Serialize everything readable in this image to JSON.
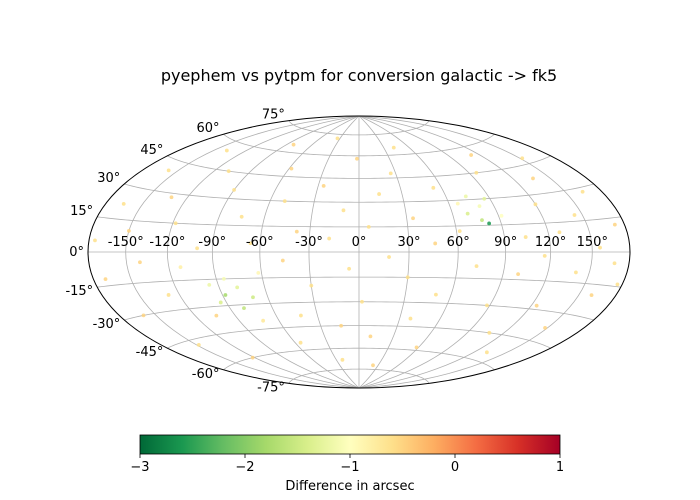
{
  "chart_data": {
    "type": "scatter",
    "projection": "aitoff",
    "title": "pyephem vs pytpm for conversion galactic -> fk5",
    "grid": true,
    "x_ticks_deg": [
      -150,
      -120,
      -90,
      -60,
      -30,
      0,
      30,
      60,
      90,
      120,
      150
    ],
    "x_tick_labels": [
      "-150°",
      "-120°",
      "-90°",
      "-60°",
      "-30°",
      "0°",
      "30°",
      "60°",
      "90°",
      "120°",
      "150°"
    ],
    "y_ticks_deg": [
      75,
      60,
      45,
      30,
      15,
      0,
      -15,
      -30,
      -45,
      -60,
      -75
    ],
    "y_tick_labels": [
      "75°",
      "60°",
      "45°",
      "30°",
      "15°",
      "0°",
      "-15°",
      "-30°",
      "-45°",
      "-60°",
      "-75°"
    ],
    "colorbar": {
      "label": "Difference in arcsec",
      "range": [
        -3,
        1
      ],
      "ticks": [
        -3,
        -2,
        -1,
        0,
        1
      ],
      "tick_labels": [
        "−3",
        "−2",
        "−1",
        "0",
        "1"
      ],
      "colormap": "RdYlGn_r",
      "colormap_stops": [
        "#006837",
        "#1a9850",
        "#66bd63",
        "#a6d96a",
        "#d9ef8b",
        "#ffffbf",
        "#fee08b",
        "#fdae61",
        "#f46d43",
        "#d73027",
        "#a50026"
      ]
    },
    "points": [
      {
        "lon": -175,
        "lat": 5,
        "diff": -0.6
      },
      {
        "lon": -170,
        "lat": -12,
        "diff": -0.5
      },
      {
        "lon": -165,
        "lat": 22,
        "diff": -0.6
      },
      {
        "lon": -160,
        "lat": -30,
        "diff": -0.5
      },
      {
        "lon": -158,
        "lat": 40,
        "diff": -0.6
      },
      {
        "lon": -150,
        "lat": 10,
        "diff": -0.5
      },
      {
        "lon": -148,
        "lat": -48,
        "diff": -0.6
      },
      {
        "lon": -140,
        "lat": -5,
        "diff": -0.5
      },
      {
        "lon": -138,
        "lat": 55,
        "diff": -0.6
      },
      {
        "lon": -132,
        "lat": 28,
        "diff": -0.5
      },
      {
        "lon": -128,
        "lat": -22,
        "diff": -0.6
      },
      {
        "lon": -122,
        "lat": -60,
        "diff": -0.5
      },
      {
        "lon": -118,
        "lat": 15,
        "diff": -0.6
      },
      {
        "lon": -112,
        "lat": -8,
        "diff": -0.8
      },
      {
        "lon": -108,
        "lat": 45,
        "diff": -0.6
      },
      {
        "lon": -104,
        "lat": -35,
        "diff": -0.5
      },
      {
        "lon": -100,
        "lat": 2,
        "diff": -0.6
      },
      {
        "lon": -96,
        "lat": -18,
        "diff": -1.2
      },
      {
        "lon": -94,
        "lat": -28,
        "diff": -1.4
      },
      {
        "lon": -90,
        "lat": 35,
        "diff": -0.6
      },
      {
        "lon": -88,
        "lat": -24,
        "diff": -1.8
      },
      {
        "lon": -85,
        "lat": -15,
        "diff": -1.1
      },
      {
        "lon": -82,
        "lat": 65,
        "diff": -0.5
      },
      {
        "lon": -80,
        "lat": -32,
        "diff": -1.6
      },
      {
        "lon": -78,
        "lat": -20,
        "diff": -1.3
      },
      {
        "lon": -75,
        "lat": 20,
        "diff": -0.6
      },
      {
        "lon": -72,
        "lat": -40,
        "diff": -0.7
      },
      {
        "lon": -70,
        "lat": -26,
        "diff": -1.5
      },
      {
        "lon": -66,
        "lat": 5,
        "diff": -0.6
      },
      {
        "lon": -62,
        "lat": -12,
        "diff": -0.9
      },
      {
        "lon": -58,
        "lat": 50,
        "diff": -0.5
      },
      {
        "lon": -55,
        "lat": -55,
        "diff": -0.6
      },
      {
        "lon": -50,
        "lat": 30,
        "diff": -0.6
      },
      {
        "lon": -46,
        "lat": -5,
        "diff": -0.5
      },
      {
        "lon": -42,
        "lat": -38,
        "diff": -0.6
      },
      {
        "lon": -38,
        "lat": 12,
        "diff": -0.5
      },
      {
        "lon": -34,
        "lat": 72,
        "diff": -0.6
      },
      {
        "lon": -30,
        "lat": -20,
        "diff": -0.6
      },
      {
        "lon": -26,
        "lat": 40,
        "diff": -0.5
      },
      {
        "lon": -22,
        "lat": -68,
        "diff": -0.6
      },
      {
        "lon": -18,
        "lat": 8,
        "diff": -0.6
      },
      {
        "lon": -14,
        "lat": -45,
        "diff": -0.5
      },
      {
        "lon": -10,
        "lat": 25,
        "diff": -0.6
      },
      {
        "lon": -6,
        "lat": -10,
        "diff": -0.6
      },
      {
        "lon": -2,
        "lat": 58,
        "diff": -0.5
      },
      {
        "lon": 2,
        "lat": -30,
        "diff": -0.6
      },
      {
        "lon": 6,
        "lat": 15,
        "diff": -0.6
      },
      {
        "lon": 10,
        "lat": -52,
        "diff": -0.5
      },
      {
        "lon": 14,
        "lat": 35,
        "diff": -0.6
      },
      {
        "lon": 18,
        "lat": -3,
        "diff": -0.6
      },
      {
        "lon": 22,
        "lat": -72,
        "diff": -0.5
      },
      {
        "lon": 26,
        "lat": 48,
        "diff": -0.6
      },
      {
        "lon": 30,
        "lat": -15,
        "diff": -0.6
      },
      {
        "lon": 34,
        "lat": 20,
        "diff": -0.5
      },
      {
        "lon": 38,
        "lat": -40,
        "diff": -0.6
      },
      {
        "lon": 42,
        "lat": 65,
        "diff": -0.6
      },
      {
        "lon": 46,
        "lat": 5,
        "diff": -0.5
      },
      {
        "lon": 50,
        "lat": -25,
        "diff": -0.6
      },
      {
        "lon": 54,
        "lat": 38,
        "diff": -0.6
      },
      {
        "lon": 58,
        "lat": -58,
        "diff": -0.5
      },
      {
        "lon": 62,
        "lat": 12,
        "diff": -0.6
      },
      {
        "lon": 66,
        "lat": 28,
        "diff": -0.9
      },
      {
        "lon": 70,
        "lat": 22,
        "diff": -1.4
      },
      {
        "lon": 72,
        "lat": -8,
        "diff": -0.6
      },
      {
        "lon": 74,
        "lat": 32,
        "diff": -1.2
      },
      {
        "lon": 78,
        "lat": 18,
        "diff": -1.6
      },
      {
        "lon": 80,
        "lat": 26,
        "diff": -1.1
      },
      {
        "lon": 82,
        "lat": 16,
        "diff": -2.6
      },
      {
        "lon": 86,
        "lat": 30,
        "diff": -1.3
      },
      {
        "lon": 88,
        "lat": -30,
        "diff": -0.6
      },
      {
        "lon": 92,
        "lat": 20,
        "diff": -1.0
      },
      {
        "lon": 96,
        "lat": 45,
        "diff": -0.6
      },
      {
        "lon": 100,
        "lat": -12,
        "diff": -0.5
      },
      {
        "lon": 104,
        "lat": 8,
        "diff": -0.6
      },
      {
        "lon": 108,
        "lat": -45,
        "diff": -0.6
      },
      {
        "lon": 112,
        "lat": 55,
        "diff": -0.5
      },
      {
        "lon": 116,
        "lat": -2,
        "diff": -0.6
      },
      {
        "lon": 120,
        "lat": 25,
        "diff": -0.6
      },
      {
        "lon": 124,
        "lat": -28,
        "diff": -0.5
      },
      {
        "lon": 128,
        "lat": 10,
        "diff": -0.6
      },
      {
        "lon": 132,
        "lat": -55,
        "diff": -0.6
      },
      {
        "lon": 136,
        "lat": 38,
        "diff": -0.5
      },
      {
        "lon": 140,
        "lat": -10,
        "diff": -0.6
      },
      {
        "lon": 144,
        "lat": 18,
        "diff": -0.6
      },
      {
        "lon": 148,
        "lat": -38,
        "diff": -0.5
      },
      {
        "lon": 152,
        "lat": 48,
        "diff": -0.6
      },
      {
        "lon": 156,
        "lat": 2,
        "diff": -0.6
      },
      {
        "lon": 160,
        "lat": -20,
        "diff": -0.5
      },
      {
        "lon": 164,
        "lat": 28,
        "diff": -0.6
      },
      {
        "lon": 168,
        "lat": -5,
        "diff": -0.6
      },
      {
        "lon": 172,
        "lat": 12,
        "diff": -0.5
      },
      {
        "lon": 176,
        "lat": -14,
        "diff": -0.6
      }
    ]
  }
}
